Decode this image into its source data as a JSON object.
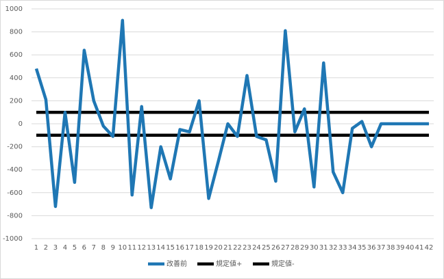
{
  "chart_data": {
    "type": "line",
    "categories": [
      "1",
      "2",
      "3",
      "4",
      "5",
      "6",
      "7",
      "8",
      "9",
      "10",
      "11",
      "12",
      "13",
      "14",
      "15",
      "16",
      "17",
      "18",
      "19",
      "20",
      "21",
      "22",
      "23",
      "24",
      "25",
      "26",
      "27",
      "28",
      "29",
      "30",
      "31",
      "32",
      "33",
      "34",
      "35",
      "36",
      "37",
      "38",
      "39",
      "40",
      "41",
      "42"
    ],
    "series": [
      {
        "name": "改善前",
        "color": "#1f77b4",
        "values": [
          480,
          210,
          -720,
          100,
          -510,
          640,
          200,
          -20,
          -110,
          900,
          -620,
          150,
          -730,
          -200,
          -480,
          -50,
          -70,
          200,
          -650,
          -330,
          0,
          -110,
          420,
          -110,
          -140,
          -500,
          810,
          -70,
          130,
          -550,
          530,
          -420,
          -600,
          -40,
          20,
          -200,
          0,
          0,
          0,
          0,
          0,
          0
        ]
      },
      {
        "name": "規定値+",
        "color": "#000000",
        "values": [
          100,
          100,
          100,
          100,
          100,
          100,
          100,
          100,
          100,
          100,
          100,
          100,
          100,
          100,
          100,
          100,
          100,
          100,
          100,
          100,
          100,
          100,
          100,
          100,
          100,
          100,
          100,
          100,
          100,
          100,
          100,
          100,
          100,
          100,
          100,
          100,
          100,
          100,
          100,
          100,
          100,
          100
        ]
      },
      {
        "name": "規定値-",
        "color": "#000000",
        "values": [
          -100,
          -100,
          -100,
          -100,
          -100,
          -100,
          -100,
          -100,
          -100,
          -100,
          -100,
          -100,
          -100,
          -100,
          -100,
          -100,
          -100,
          -100,
          -100,
          -100,
          -100,
          -100,
          -100,
          -100,
          -100,
          -100,
          -100,
          -100,
          -100,
          -100,
          -100,
          -100,
          -100,
          -100,
          -100,
          -100,
          -100,
          -100,
          -100,
          -100,
          -100,
          -100
        ]
      }
    ],
    "ylim": [
      -1000,
      1000
    ],
    "yticks": [
      -1000,
      -800,
      -600,
      -400,
      -200,
      0,
      200,
      400,
      600,
      800,
      1000
    ],
    "grid": true,
    "legend": "bottom"
  }
}
